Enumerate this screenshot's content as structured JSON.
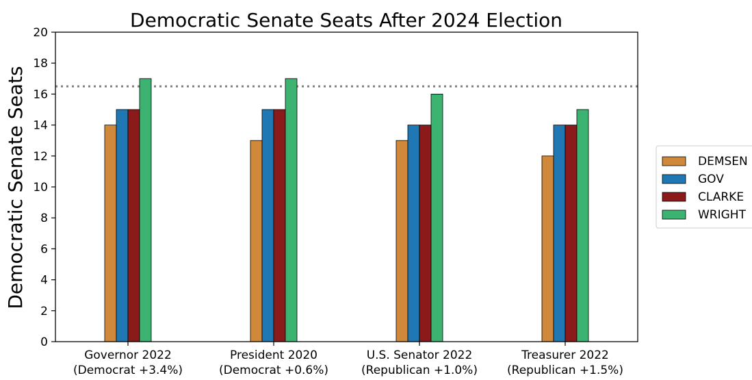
{
  "chart_data": {
    "type": "bar",
    "title": "Democratic Senate Seats After 2024 Election",
    "xlabel": "",
    "ylabel": "Democratic Senate Seats",
    "ylim": [
      0,
      20
    ],
    "yticks": [
      0,
      2,
      4,
      6,
      8,
      10,
      12,
      14,
      16,
      18,
      20
    ],
    "grid": false,
    "legend_position": "right, outside plot",
    "categories": [
      [
        "Governor 2022",
        "(Democrat +3.4%)"
      ],
      [
        "President 2020",
        "(Democrat +0.6%)"
      ],
      [
        "U.S. Senator 2022",
        "(Republican +1.0%)"
      ],
      [
        "Treasurer 2022",
        "(Republican +1.5%)"
      ]
    ],
    "series": [
      {
        "name": "DEMSEN",
        "color": "#D0883B",
        "values": [
          14,
          13,
          13,
          12
        ]
      },
      {
        "name": "GOV",
        "color": "#1F77B4",
        "values": [
          15,
          15,
          14,
          14
        ]
      },
      {
        "name": "CLARKE",
        "color": "#8B1A1A",
        "values": [
          15,
          15,
          14,
          14
        ]
      },
      {
        "name": "WRIGHT",
        "color": "#3CB371",
        "values": [
          17,
          17,
          16,
          15
        ]
      }
    ],
    "reference_line": {
      "y": 16.5,
      "style": "dotted",
      "color": "#808080"
    }
  }
}
